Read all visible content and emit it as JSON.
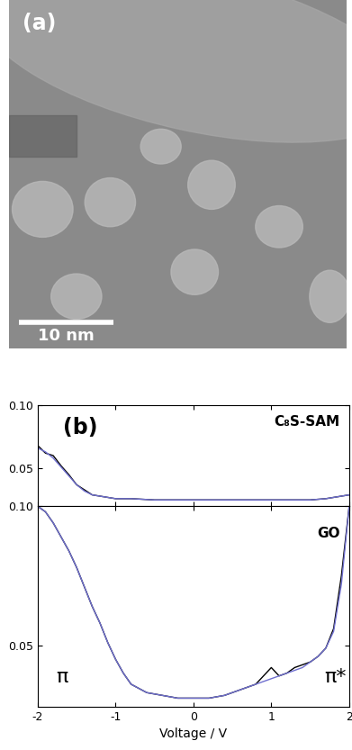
{
  "panel_a": {
    "label": "(a)",
    "scale_bar": "10 nm"
  },
  "chart_data": [
    {
      "type": "line",
      "panel_label": "(b)",
      "label": "C₈S-SAM",
      "x": [
        -2.0,
        -1.9,
        -1.8,
        -1.7,
        -1.6,
        -1.5,
        -1.4,
        -1.3,
        -1.2,
        -1.0,
        -0.8,
        -0.5,
        0.0,
        0.5,
        1.0,
        1.5,
        1.7,
        1.8,
        1.9,
        2.0
      ],
      "series": [
        {
          "color": "#000000",
          "values": [
            0.068,
            0.062,
            0.06,
            0.052,
            0.045,
            0.037,
            0.033,
            0.029,
            0.028,
            0.026,
            0.026,
            0.025,
            0.025,
            0.025,
            0.025,
            0.025,
            0.026,
            0.027,
            0.028,
            0.029
          ]
        },
        {
          "color": "#7070d0",
          "values": [
            0.066,
            0.063,
            0.058,
            0.051,
            0.044,
            0.037,
            0.032,
            0.029,
            0.028,
            0.026,
            0.026,
            0.025,
            0.025,
            0.025,
            0.025,
            0.025,
            0.026,
            0.027,
            0.028,
            0.029
          ]
        }
      ],
      "xlim": [
        -2,
        2
      ],
      "xticks": [
        -2,
        -1,
        0,
        1,
        2
      ],
      "ylim": [
        0.02,
        0.1
      ],
      "yticks": [
        0.05,
        {
          "value": 0.1,
          "label": "0.10"
        }
      ],
      "tick_labels": "y"
    },
    {
      "type": "line",
      "label": "GO",
      "annotations": [
        "π",
        "π*"
      ],
      "x_label": "Voltage / V",
      "x": [
        -2.0,
        -1.9,
        -1.8,
        -1.7,
        -1.6,
        -1.5,
        -1.4,
        -1.3,
        -1.2,
        -1.1,
        -1.0,
        -0.9,
        -0.8,
        -0.6,
        -0.4,
        -0.2,
        0.0,
        0.2,
        0.4,
        0.6,
        0.8,
        1.0,
        1.1,
        1.2,
        1.3,
        1.4,
        1.5,
        1.6,
        1.7,
        1.8,
        1.9,
        2.0
      ],
      "series": [
        {
          "color": "#000000",
          "values": [
            0.1,
            0.098,
            0.094,
            0.089,
            0.084,
            0.078,
            0.071,
            0.064,
            0.058,
            0.051,
            0.045,
            0.04,
            0.036,
            0.033,
            0.032,
            0.031,
            0.031,
            0.031,
            0.032,
            0.034,
            0.036,
            0.042,
            0.039,
            0.04,
            0.042,
            0.043,
            0.044,
            0.046,
            0.049,
            0.056,
            0.075,
            0.1
          ]
        },
        {
          "color": "#7070d0",
          "values": [
            0.1,
            0.098,
            0.094,
            0.089,
            0.084,
            0.078,
            0.071,
            0.064,
            0.058,
            0.051,
            0.045,
            0.04,
            0.036,
            0.033,
            0.032,
            0.031,
            0.031,
            0.031,
            0.032,
            0.034,
            0.036,
            0.038,
            0.039,
            0.04,
            0.041,
            0.042,
            0.044,
            0.046,
            0.049,
            0.055,
            0.072,
            0.1
          ]
        }
      ],
      "xlim": [
        -2,
        2
      ],
      "xticks": [
        -2,
        -1,
        0,
        1,
        2
      ],
      "ylim": [
        0.028,
        0.1
      ],
      "yticks": [
        0.05,
        {
          "value": 0.1,
          "label": "0.10"
        }
      ]
    }
  ]
}
